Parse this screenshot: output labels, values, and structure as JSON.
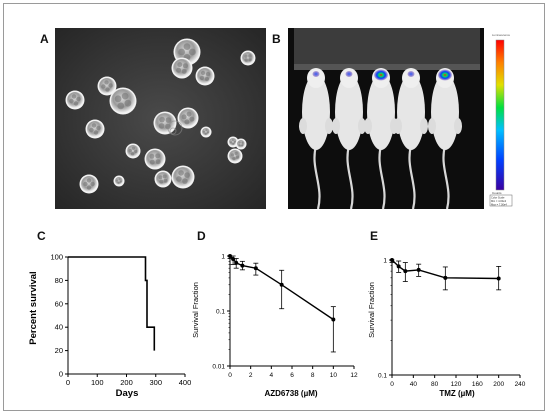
{
  "panels": {
    "A": {
      "label": "A"
    },
    "B": {
      "label": "B",
      "scale_text": {
        "title": "Luminescence",
        "line1": "Color Scale",
        "line2": "Min = 4.00e3",
        "line3": "Max = 7.00e4",
        "bottom": "Counts"
      }
    },
    "C": {
      "label": "C"
    },
    "D": {
      "label": "D"
    },
    "E": {
      "label": "E"
    }
  },
  "chart_data": [
    {
      "panel": "C",
      "type": "line",
      "step": true,
      "xlabel": "Days",
      "ylabel": "Percent survival",
      "xlim": [
        0,
        400
      ],
      "ylim": [
        0,
        100
      ],
      "xticks": [
        "0",
        "100",
        "200",
        "300",
        "400"
      ],
      "yticks": [
        "0",
        "20",
        "40",
        "60",
        "80",
        "100"
      ],
      "x": [
        0,
        265,
        265,
        270,
        270,
        295,
        295
      ],
      "y": [
        100,
        100,
        80,
        80,
        40,
        40,
        20
      ]
    },
    {
      "panel": "D",
      "type": "line",
      "log_y": true,
      "xlabel": "AZD6738 (µM)",
      "ylabel": "Survival Fraction",
      "xlim": [
        0,
        12
      ],
      "ylim": [
        0.01,
        1
      ],
      "xticks": [
        "0",
        "2",
        "4",
        "6",
        "8",
        "10",
        "12"
      ],
      "yticks": [
        "0.01",
        "0.1",
        "1"
      ],
      "x": [
        0,
        0.3,
        0.6,
        1.2,
        2.5,
        5,
        10
      ],
      "y": [
        1.0,
        0.88,
        0.75,
        0.67,
        0.6,
        0.3,
        0.07
      ],
      "err_low": [
        0.9,
        0.7,
        0.6,
        0.56,
        0.45,
        0.11,
        0.018
      ],
      "err_high": [
        1.0,
        1.0,
        0.9,
        0.8,
        0.74,
        0.55,
        0.12
      ]
    },
    {
      "panel": "E",
      "type": "line",
      "log_y": true,
      "xlabel": "TMZ (µM)",
      "ylabel": "Survival Fraction",
      "xlim": [
        0,
        240
      ],
      "ylim": [
        0.1,
        1
      ],
      "xticks": [
        "0",
        "40",
        "80",
        "120",
        "160",
        "200",
        "240"
      ],
      "yticks": [
        "0.1",
        "1"
      ],
      "x": [
        0,
        12.5,
        25,
        50,
        100,
        200
      ],
      "y": [
        1.0,
        0.88,
        0.8,
        0.82,
        0.7,
        0.69
      ],
      "err_low": [
        0.95,
        0.78,
        0.65,
        0.72,
        0.55,
        0.55
      ],
      "err_high": [
        1.0,
        0.98,
        0.95,
        0.92,
        0.87,
        0.88
      ]
    }
  ]
}
